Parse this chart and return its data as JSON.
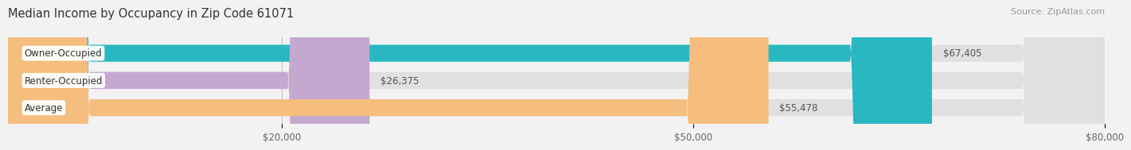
{
  "title": "Median Income by Occupancy in Zip Code 61071",
  "source": "Source: ZipAtlas.com",
  "categories": [
    "Owner-Occupied",
    "Renter-Occupied",
    "Average"
  ],
  "values": [
    67405,
    26375,
    55478
  ],
  "labels": [
    "$67,405",
    "$26,375",
    "$55,478"
  ],
  "bar_colors": [
    "#29b8c2",
    "#c4a8d0",
    "#f5be7e"
  ],
  "xlim": [
    0,
    80000
  ],
  "xticks": [
    20000,
    50000,
    80000
  ],
  "xticklabels": [
    "$20,000",
    "$50,000",
    "$80,000"
  ],
  "bg_color": "#f2f2f2",
  "bar_bg_color": "#e0e0e0",
  "title_fontsize": 10.5,
  "source_fontsize": 8,
  "label_fontsize": 8.5,
  "tick_fontsize": 8.5
}
